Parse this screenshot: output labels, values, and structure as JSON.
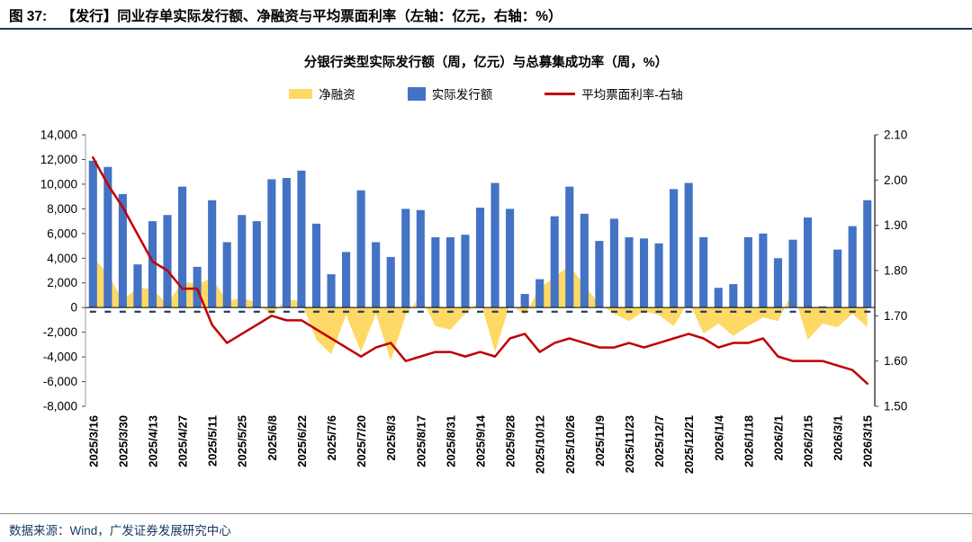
{
  "page": {
    "figure_label": "图 37:",
    "figure_title": "【发行】同业存单实际发行额、净融资与平均票面利率（左轴：亿元，右轴：%）",
    "source": "数据来源：Wind，广发证券发展研究中心"
  },
  "chart_data": {
    "type": "combo",
    "title": "分银行类型实际发行额（周，亿元）与总募集成功率（周，%）",
    "legend_position": "top",
    "x_label_every": 2,
    "left_axis": {
      "min": -8000,
      "max": 14000,
      "step": 2000
    },
    "right_axis": {
      "min": 1.5,
      "max": 2.1,
      "step": 0.1
    },
    "categories": [
      "2025/3/16",
      "2025/3/23",
      "2025/3/30",
      "2025/4/6",
      "2025/4/13",
      "2025/4/20",
      "2025/4/27",
      "2025/5/4",
      "2025/5/11",
      "2025/5/18",
      "2025/5/25",
      "2025/6/1",
      "2025/6/8",
      "2025/6/15",
      "2025/6/22",
      "2025/6/29",
      "2025/7/6",
      "2025/7/13",
      "2025/7/20",
      "2025/7/27",
      "2025/8/3",
      "2025/8/10",
      "2025/8/17",
      "2025/8/24",
      "2025/8/31",
      "2025/9/7",
      "2025/9/14",
      "2025/9/21",
      "2025/9/28",
      "2025/10/5",
      "2025/10/12",
      "2025/10/19",
      "2025/10/26",
      "2025/11/2",
      "2025/11/9",
      "2025/11/16",
      "2025/11/23",
      "2025/11/30",
      "2025/12/7",
      "2025/12/14",
      "2025/12/21",
      "2025/12/28",
      "2026/1/4",
      "2026/1/11",
      "2026/1/18",
      "2026/1/25",
      "2026/2/1",
      "2026/2/8",
      "2026/2/15",
      "2026/2/22",
      "2026/3/1",
      "2026/3/8",
      "2026/3/15"
    ],
    "series": [
      {
        "name": "净融资",
        "type": "area",
        "axis": "left",
        "color": "#FFD966",
        "values": [
          4100,
          2700,
          600,
          1600,
          1500,
          300,
          2100,
          1900,
          2400,
          500,
          800,
          400,
          -600,
          700,
          500,
          -2600,
          -3800,
          -600,
          -3600,
          -500,
          -4300,
          -600,
          900,
          -1500,
          -1800,
          -500,
          600,
          -3600,
          300,
          -600,
          1600,
          2500,
          3400,
          1800,
          300,
          -500,
          -1100,
          -300,
          -600,
          -1500,
          500,
          -2100,
          -1300,
          -2300,
          -1500,
          -800,
          -1100,
          1400,
          -2600,
          -1300,
          -1600,
          -500,
          -1600
        ]
      },
      {
        "name": "实际发行额",
        "type": "bar",
        "axis": "left",
        "color": "#4472C4",
        "values": [
          11900,
          11400,
          9200,
          3500,
          7000,
          7500,
          9800,
          3300,
          8700,
          5300,
          7500,
          7000,
          10400,
          10500,
          11100,
          6800,
          2700,
          4500,
          9500,
          5300,
          4100,
          8000,
          7900,
          5700,
          5700,
          5900,
          8100,
          10100,
          8000,
          1100,
          2300,
          7400,
          9800,
          7600,
          5400,
          7200,
          5700,
          5600,
          5200,
          9600,
          10100,
          5700,
          1600,
          1900,
          5700,
          6000,
          4000,
          5500,
          7300,
          100,
          4700,
          6600,
          8700
        ]
      },
      {
        "name": "平均票面利率-右轴",
        "type": "line",
        "axis": "right",
        "color": "#C00000",
        "values": [
          2.05,
          1.99,
          1.94,
          1.88,
          1.82,
          1.8,
          1.76,
          1.76,
          1.68,
          1.64,
          1.66,
          1.68,
          1.7,
          1.69,
          1.69,
          1.67,
          1.65,
          1.63,
          1.61,
          1.63,
          1.64,
          1.6,
          1.61,
          1.62,
          1.62,
          1.61,
          1.62,
          1.61,
          1.65,
          1.66,
          1.62,
          1.64,
          1.65,
          1.64,
          1.63,
          1.63,
          1.64,
          1.63,
          1.64,
          1.65,
          1.66,
          1.65,
          1.63,
          1.64,
          1.64,
          1.65,
          1.61,
          1.6,
          1.6,
          1.6,
          1.59,
          1.58,
          1.55
        ]
      }
    ]
  }
}
